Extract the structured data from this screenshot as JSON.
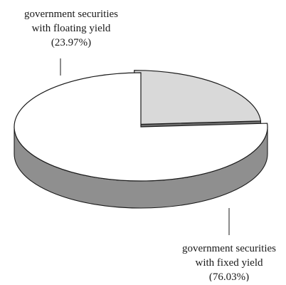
{
  "chart_data": {
    "type": "pie",
    "title": "",
    "slices": [
      {
        "label_lines": [
          "government securities",
          "with floating yield",
          "(23.97%)"
        ],
        "value": 23.97,
        "color": "#d9d9d9",
        "exploded": true
      },
      {
        "label_lines": [
          "government securities",
          "with fixed yield",
          "(76.03%)"
        ],
        "value": 76.03,
        "color": "#ffffff",
        "exploded": false
      }
    ],
    "side_color": "#8f8f8f",
    "edge_color": "#1a1a1a",
    "legend": "none",
    "style": "3d-pie"
  }
}
